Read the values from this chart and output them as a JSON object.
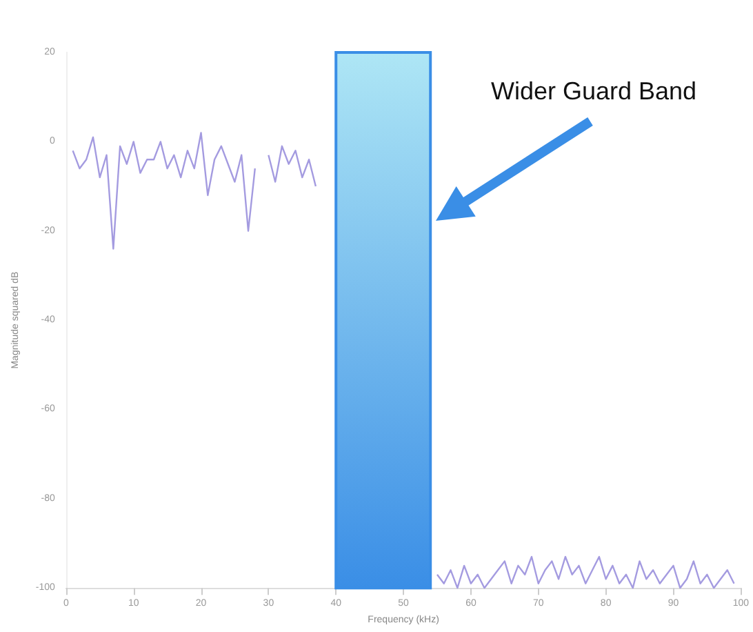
{
  "chart_data": {
    "type": "line",
    "xlabel": "Frequency (kHz)",
    "ylabel": "Magnitude squared dB",
    "x": [
      1,
      2,
      3,
      4,
      5,
      6,
      7,
      8,
      9,
      10,
      11,
      12,
      13,
      14,
      15,
      16,
      17,
      18,
      19,
      20,
      21,
      22,
      23,
      24,
      25,
      26,
      27,
      28,
      29,
      30,
      31,
      32,
      33,
      34,
      35,
      36,
      37,
      38,
      55,
      56,
      57,
      58,
      59,
      60,
      61,
      62,
      63,
      64,
      65,
      66,
      67,
      68,
      69,
      70,
      71,
      72,
      73,
      74,
      75,
      76,
      77,
      78,
      79,
      80,
      81,
      82,
      83,
      84,
      85,
      86,
      87,
      88,
      89,
      90,
      91,
      92,
      93,
      94,
      95,
      96,
      97,
      98,
      99
    ],
    "series": [
      {
        "color": "#a49be0",
        "values": [
          -2,
          -6,
          -4,
          1,
          -8,
          -3,
          -24,
          -1,
          -5,
          0,
          -7,
          -4,
          -4,
          0,
          -6,
          -3,
          -8,
          -2,
          -6,
          2,
          -12,
          -4,
          -1,
          -5,
          -9,
          -3,
          -20,
          -6,
          null,
          -3,
          -9,
          -1,
          -5,
          -2,
          -8,
          -4,
          -10,
          null,
          -97,
          -99,
          -96,
          -100,
          -95,
          -99,
          -97,
          -100,
          -98,
          -96,
          -94,
          -99,
          -95,
          -97,
          -93,
          -99,
          -96,
          -94,
          -98,
          -93,
          -97,
          -95,
          -99,
          -96,
          -93,
          -98,
          -95,
          -99,
          -97,
          -100,
          -94,
          -98,
          -96,
          -99,
          -97,
          -95,
          -100,
          -98,
          -94,
          -99,
          -97,
          -100,
          -98,
          -96,
          -99
        ]
      }
    ],
    "xlim": [
      0,
      100
    ],
    "xticks": [
      0,
      10,
      20,
      30,
      40,
      50,
      60,
      70,
      80,
      90,
      100
    ],
    "ylim": [
      -100,
      20
    ],
    "yticks": [
      -100,
      -80,
      -60,
      -40,
      -20,
      0,
      20
    ],
    "bands": [
      {
        "axis": "x",
        "from": 40,
        "to": 54,
        "color": "#3a8ee6"
      }
    ],
    "annotations": [
      "Wider Guard Band"
    ],
    "grid": false,
    "marker": "none",
    "line_style": "solid"
  }
}
